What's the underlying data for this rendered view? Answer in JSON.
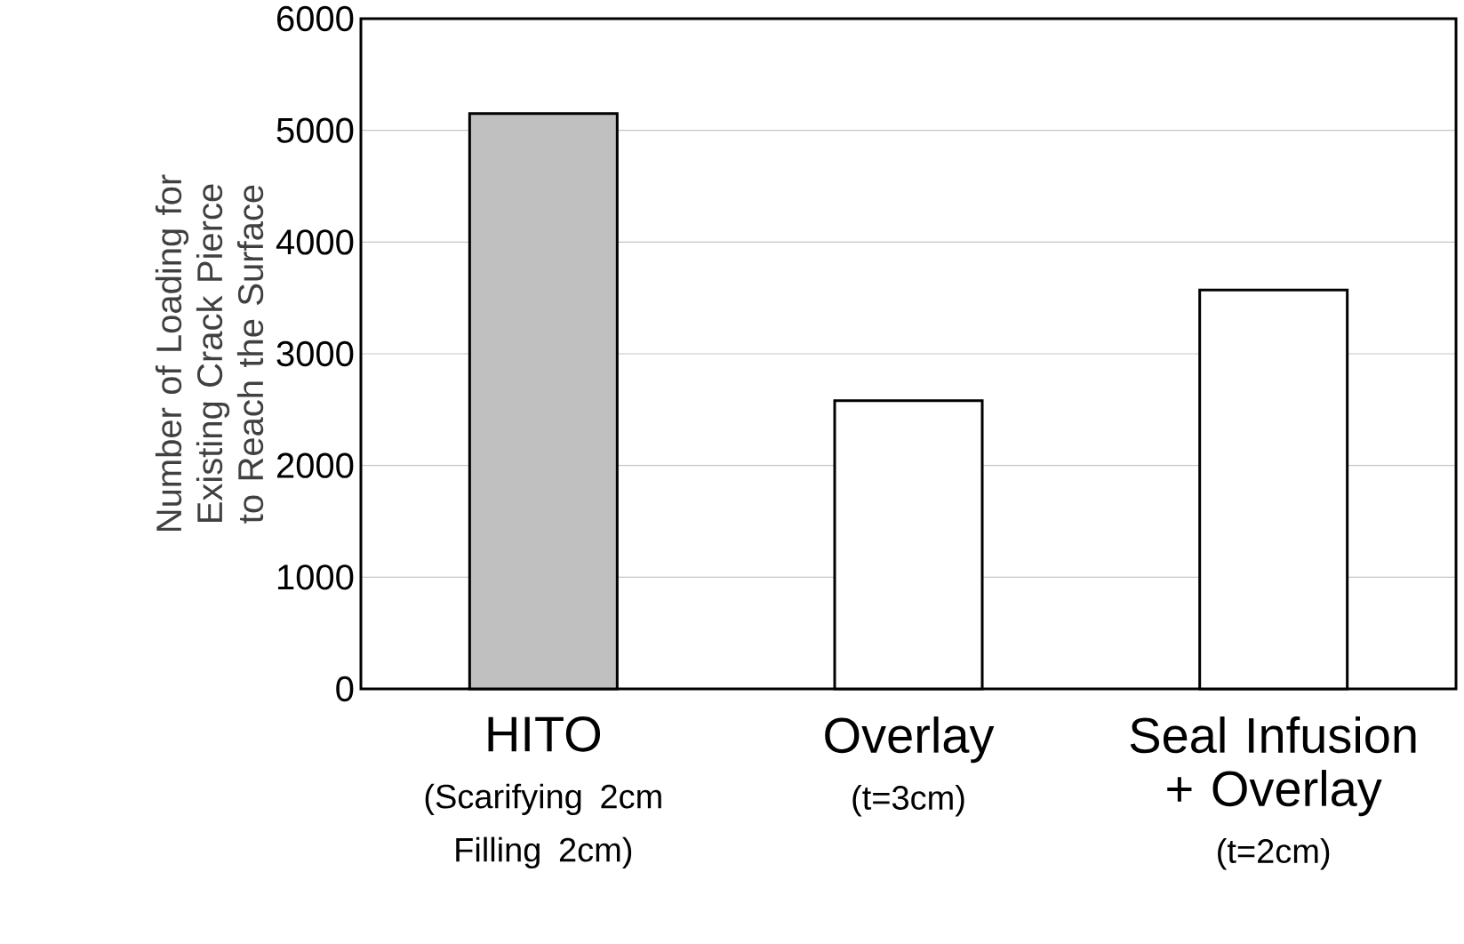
{
  "chart_data": {
    "type": "bar",
    "ylabel": "Number of Loading for Existing Crack Pierce to Reach the Surface",
    "categories": [
      "HITO",
      "Overlay",
      "Seal Infusion + Overlay"
    ],
    "values": [
      5150,
      2580,
      3570
    ],
    "colors": [
      "#c0c0c0",
      "#ffffff",
      "#ffffff"
    ],
    "annotations": [
      "(Scarifying 2cm Filling 2cm)",
      "(t=3cm)",
      "(t=2cm)"
    ],
    "ylim": [
      0,
      6000
    ],
    "yticks": [
      0,
      1000,
      2000,
      3000,
      4000,
      5000,
      6000
    ],
    "grid": "y"
  }
}
